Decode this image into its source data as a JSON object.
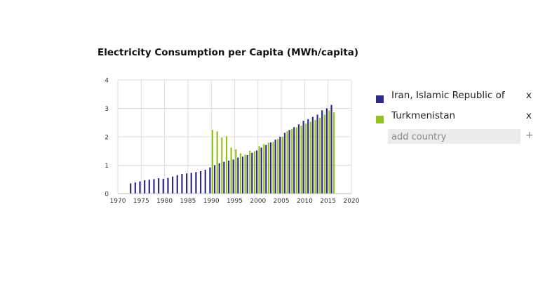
{
  "chart_data": {
    "type": "bar",
    "title": "Electricity Consumption per Capita (MWh/capita)",
    "xlabel": "",
    "ylabel": "",
    "xlim": [
      1970,
      2020
    ],
    "ylim": [
      0,
      4
    ],
    "x_ticks": [
      1970,
      1975,
      1980,
      1985,
      1990,
      1995,
      2000,
      2005,
      2010,
      2015,
      2020
    ],
    "y_ticks": [
      0,
      1,
      2,
      3,
      4
    ],
    "grid": true,
    "series": [
      {
        "name": "Iran, Islamic Republic of",
        "color": "#2e2a85",
        "x": [
          1973,
          1974,
          1975,
          1976,
          1977,
          1978,
          1979,
          1980,
          1981,
          1982,
          1983,
          1984,
          1985,
          1986,
          1987,
          1988,
          1989,
          1990,
          1991,
          1992,
          1993,
          1994,
          1995,
          1996,
          1997,
          1998,
          1999,
          2000,
          2001,
          2002,
          2003,
          2004,
          2005,
          2006,
          2007,
          2008,
          2009,
          2010,
          2011,
          2012,
          2013,
          2014,
          2015,
          2016
        ],
        "values": [
          0.36,
          0.39,
          0.43,
          0.47,
          0.49,
          0.51,
          0.54,
          0.52,
          0.55,
          0.6,
          0.65,
          0.69,
          0.71,
          0.73,
          0.76,
          0.79,
          0.84,
          0.92,
          1.0,
          1.07,
          1.12,
          1.16,
          1.2,
          1.27,
          1.3,
          1.36,
          1.44,
          1.52,
          1.62,
          1.71,
          1.8,
          1.9,
          2.0,
          2.14,
          2.24,
          2.34,
          2.44,
          2.56,
          2.62,
          2.7,
          2.78,
          2.93,
          3.0,
          3.12
        ]
      },
      {
        "name": "Turkmenistan",
        "color": "#95c11f",
        "x": [
          1990,
          1991,
          1992,
          1993,
          1994,
          1995,
          1996,
          1997,
          1998,
          1999,
          2000,
          2001,
          2002,
          2003,
          2004,
          2005,
          2006,
          2007,
          2008,
          2009,
          2010,
          2011,
          2012,
          2013,
          2014,
          2015,
          2016
        ],
        "values": [
          2.24,
          2.19,
          1.97,
          2.02,
          1.62,
          1.56,
          1.42,
          1.37,
          1.51,
          1.49,
          1.67,
          1.74,
          1.79,
          1.82,
          1.92,
          2.0,
          2.2,
          2.28,
          2.33,
          2.39,
          2.46,
          2.53,
          2.59,
          2.67,
          2.78,
          2.92,
          2.86
        ]
      }
    ]
  },
  "legend": {
    "items": [
      {
        "label": "Iran, Islamic Republic of",
        "color": "#2e2a85",
        "remove_label": "x"
      },
      {
        "label": "Turkmenistan",
        "color": "#95c11f",
        "remove_label": "x"
      }
    ],
    "add_placeholder": "add country",
    "add_button_label": "+"
  }
}
